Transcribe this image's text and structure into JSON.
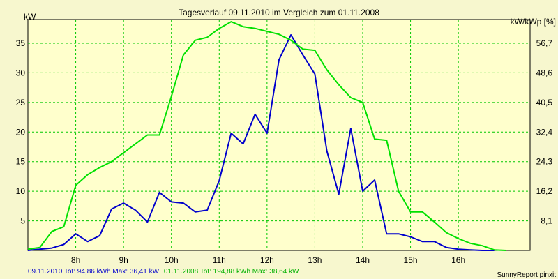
{
  "chart_data": {
    "type": "line",
    "title": "Tagesverlauf 09.11.2010 im Vergleich zum 01.11.2008",
    "left_axis_label": "kW",
    "right_axis_label": "kW/kWp [%]",
    "xlim": [
      7.0,
      17.5
    ],
    "ylim": [
      0,
      39
    ],
    "x_ticks": [
      8,
      9,
      10,
      11,
      12,
      13,
      14,
      15,
      16
    ],
    "x_tick_labels": [
      "8h",
      "9h",
      "10h",
      "11h",
      "12h",
      "13h",
      "14h",
      "15h",
      "16h"
    ],
    "y_ticks": [
      5,
      10,
      15,
      20,
      25,
      30,
      35
    ],
    "y_tick_labels": [
      "5",
      "10",
      "15",
      "20",
      "25",
      "30",
      "35"
    ],
    "right_ticks": [
      {
        "kw": 5,
        "label": "8,1"
      },
      {
        "kw": 10,
        "label": "16,2"
      },
      {
        "kw": 15,
        "label": "24,3"
      },
      {
        "kw": 20,
        "label": "32,4"
      },
      {
        "kw": 25,
        "label": "40,5"
      },
      {
        "kw": 30,
        "label": "48,6"
      },
      {
        "kw": 35,
        "label": "56,7"
      }
    ],
    "grid": true,
    "series": [
      {
        "name": "09.11.2010",
        "color": "#0000cc",
        "summary": "09.11.2010 Tot: 94,86 kWh Max: 36,41 kW",
        "x": [
          7.0,
          7.25,
          7.5,
          7.75,
          8.0,
          8.25,
          8.5,
          8.75,
          9.0,
          9.25,
          9.5,
          9.75,
          10.0,
          10.25,
          10.5,
          10.75,
          11.0,
          11.25,
          11.5,
          11.75,
          12.0,
          12.25,
          12.5,
          12.75,
          13.0,
          13.25,
          13.5,
          13.75,
          14.0,
          14.25,
          14.5,
          14.75,
          15.0,
          15.25,
          15.5,
          15.75,
          16.0,
          16.25,
          16.5,
          16.75
        ],
        "y": [
          0,
          0.2,
          0.4,
          1.0,
          2.8,
          1.5,
          2.5,
          7.0,
          8.0,
          6.8,
          4.8,
          9.8,
          8.2,
          8.0,
          6.5,
          6.8,
          11.8,
          19.8,
          18.0,
          23.0,
          19.8,
          32.2,
          36.41,
          33.0,
          29.8,
          16.8,
          9.5,
          20.6,
          10.0,
          11.9,
          2.8,
          2.8,
          2.3,
          1.5,
          1.5,
          0.5,
          0.2,
          0.1,
          0.0,
          0.0
        ]
      },
      {
        "name": "01.11.2008",
        "color": "#00e000",
        "summary": "01.11.2008 Tot: 194,88 kWh Max: 38,64 kW",
        "x": [
          7.0,
          7.25,
          7.5,
          7.75,
          8.0,
          8.25,
          8.5,
          8.75,
          9.0,
          9.25,
          9.5,
          9.75,
          10.0,
          10.25,
          10.5,
          10.75,
          11.0,
          11.25,
          11.5,
          11.75,
          12.0,
          12.25,
          12.5,
          12.75,
          13.0,
          13.25,
          13.5,
          13.75,
          14.0,
          14.25,
          14.5,
          14.75,
          15.0,
          15.25,
          15.5,
          15.75,
          16.0,
          16.25,
          16.5,
          16.75,
          17.0
        ],
        "y": [
          0.2,
          0.5,
          3.2,
          4.0,
          11.0,
          12.8,
          14.0,
          15.0,
          16.5,
          18.0,
          19.5,
          19.5,
          26.0,
          33.0,
          35.5,
          36.0,
          37.5,
          38.64,
          37.8,
          37.5,
          37.0,
          36.5,
          35.5,
          34.0,
          33.8,
          30.5,
          28.0,
          25.8,
          25.0,
          18.8,
          18.6,
          10.0,
          6.5,
          6.5,
          4.8,
          3.0,
          2.0,
          1.2,
          0.8,
          0.1,
          0.0
        ]
      }
    ]
  },
  "footer": {
    "credit": "SunnyReport pinxit"
  }
}
